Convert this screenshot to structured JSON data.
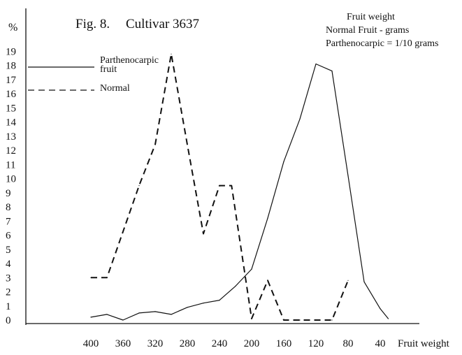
{
  "chart_data": {
    "type": "line",
    "title": "Fig. 8.",
    "subtitle": "Cultivar 3637",
    "ylabel": "%",
    "xlabel": "Fruit weight",
    "note_lines": [
      "Fruit weight",
      "Normal Fruit - grams",
      "Parthenocarpic = 1/10 grams"
    ],
    "x_reversed": true,
    "xlim": [
      20,
      420
    ],
    "ylim": [
      0,
      20
    ],
    "x_ticks": [
      400,
      360,
      320,
      280,
      240,
      200,
      160,
      120,
      80,
      40
    ],
    "y_ticks": [
      0,
      1,
      2,
      3,
      4,
      5,
      6,
      7,
      8,
      9,
      10,
      11,
      12,
      13,
      14,
      15,
      16,
      17,
      18,
      19
    ],
    "legend_position": "top-left",
    "series": [
      {
        "name": "Parthenocarpic fruit",
        "style": "solid",
        "color": "#111111",
        "x": [
          400,
          380,
          360,
          340,
          320,
          300,
          280,
          260,
          240,
          220,
          200,
          180,
          160,
          140,
          120,
          100,
          80,
          60,
          40,
          30
        ],
        "y": [
          0.2,
          0.4,
          0.0,
          0.5,
          0.6,
          0.4,
          0.9,
          1.2,
          1.4,
          2.4,
          3.6,
          7.2,
          11.2,
          14.2,
          18.1,
          17.6,
          10.2,
          2.7,
          0.8,
          0.1
        ]
      },
      {
        "name": "Normal",
        "style": "dashed",
        "color": "#111111",
        "x": [
          400,
          380,
          340,
          320,
          300,
          280,
          260,
          240,
          225,
          200,
          180,
          160,
          140,
          120,
          100,
          80
        ],
        "y": [
          3.0,
          3.0,
          9.5,
          12.4,
          18.8,
          12.4,
          6.1,
          9.5,
          9.5,
          0.1,
          2.8,
          0.0,
          0.0,
          0.0,
          0.0,
          2.8
        ]
      }
    ]
  }
}
